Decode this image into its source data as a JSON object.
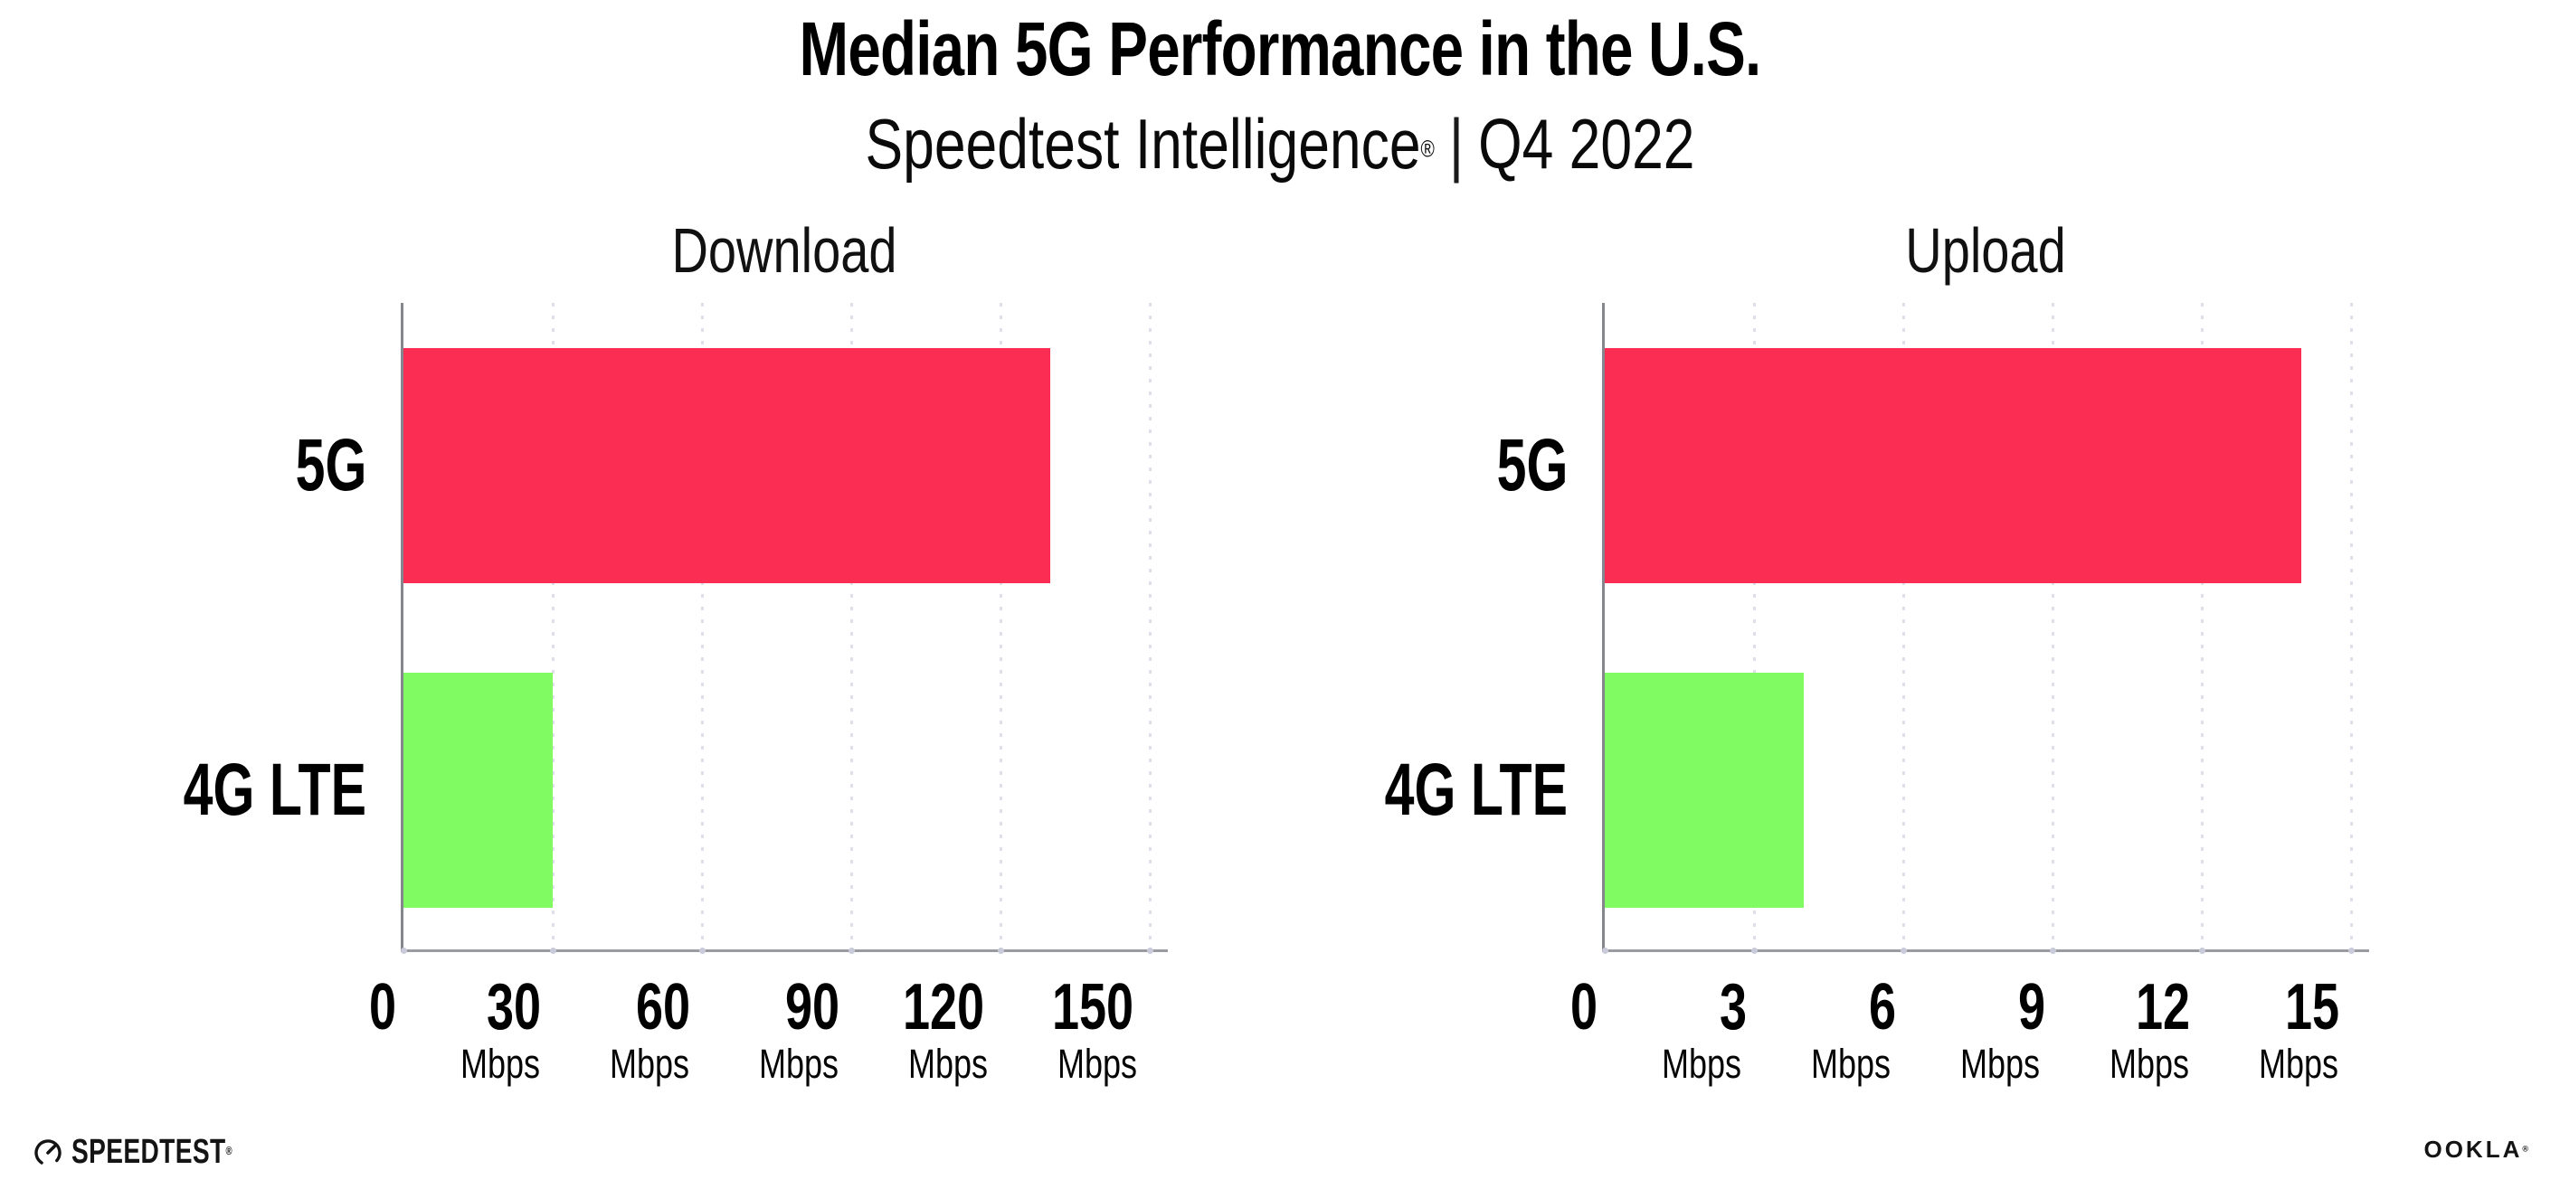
{
  "header": {
    "title": "Median 5G Performance in the U.S.",
    "subtitle_brand": "Speedtest Intelligence",
    "subtitle_reg": "®",
    "subtitle_separator": "|",
    "subtitle_period": "Q4 2022"
  },
  "chart_data": [
    {
      "type": "bar",
      "orientation": "horizontal",
      "title": "Download",
      "categories": [
        "5G",
        "4G LTE"
      ],
      "values": [
        130,
        30
      ],
      "unit": "Mbps",
      "xlim": [
        0,
        150
      ],
      "xticks": [
        0,
        30,
        60,
        90,
        120,
        150
      ],
      "bar_colors": [
        "#FC2D53",
        "#81FB62"
      ],
      "grid": "dotted-vertical",
      "legend": "none"
    },
    {
      "type": "bar",
      "orientation": "horizontal",
      "title": "Upload",
      "categories": [
        "5G",
        "4G LTE"
      ],
      "values": [
        14,
        4
      ],
      "unit": "Mbps",
      "xlim": [
        0,
        15
      ],
      "xticks": [
        0,
        3,
        6,
        9,
        12,
        15
      ],
      "bar_colors": [
        "#FC2D53",
        "#81FB62"
      ],
      "grid": "dotted-vertical",
      "legend": "none"
    }
  ],
  "footer": {
    "speedtest_logo_text": "SPEEDTEST",
    "speedtest_reg": "®",
    "ookla_logo_text": "OOKLA",
    "ookla_reg": "®"
  },
  "colors": {
    "bar_5g": "#FC2D53",
    "bar_4g_lte": "#81FB62",
    "y_axis": "#85858E",
    "x_axis": "#9A9AA1",
    "gridline": "#DFDFEC",
    "text": "#000000"
  }
}
